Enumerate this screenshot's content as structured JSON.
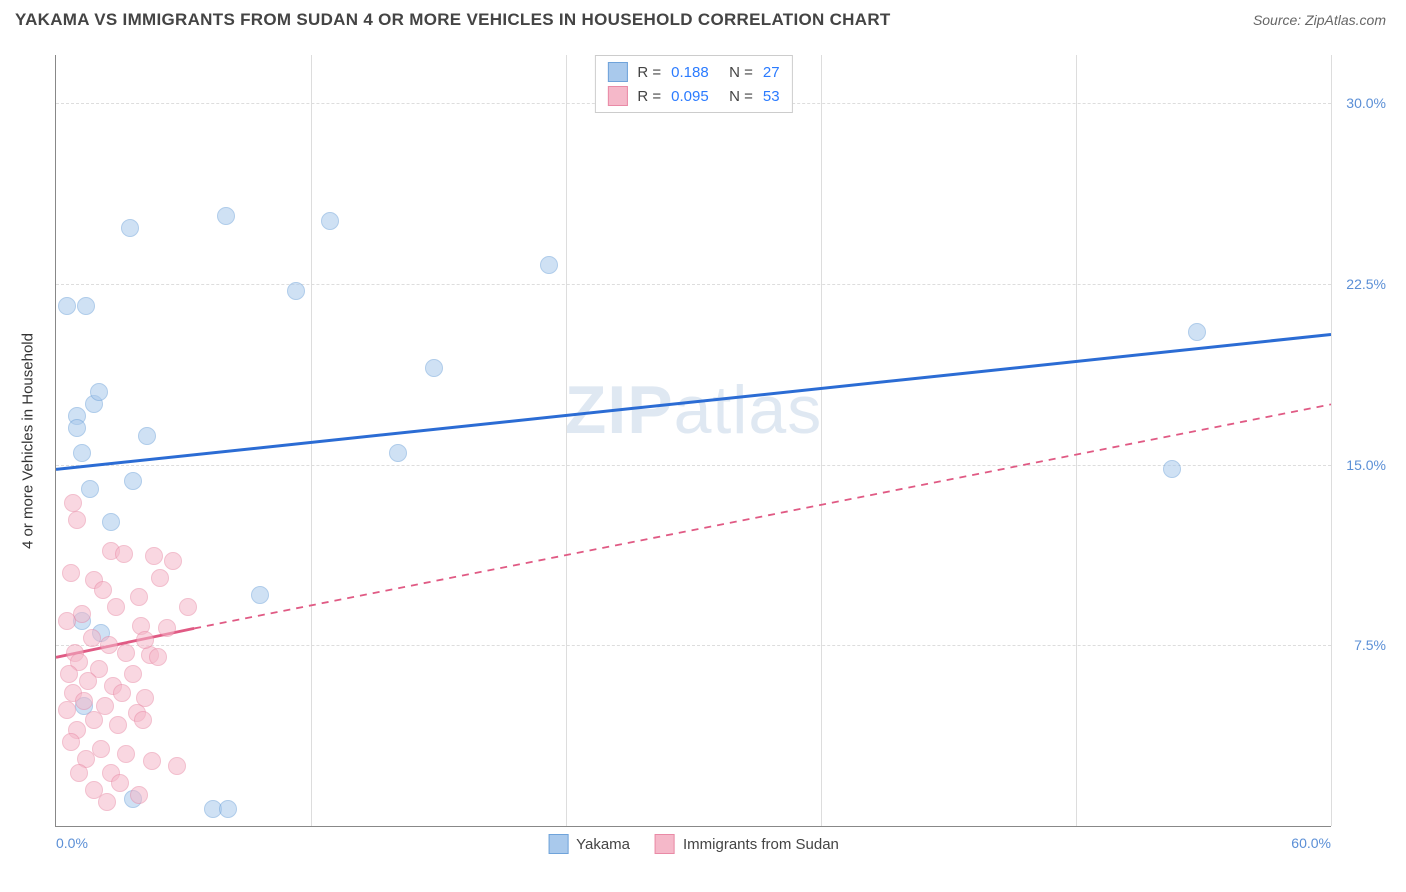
{
  "header": {
    "title": "YAKAMA VS IMMIGRANTS FROM SUDAN 4 OR MORE VEHICLES IN HOUSEHOLD CORRELATION CHART",
    "source": "Source: ZipAtlas.com"
  },
  "chart": {
    "type": "scatter",
    "watermark": "ZIPatlas",
    "y_axis_label": "4 or more Vehicles in Household",
    "xlim": [
      0,
      60
    ],
    "ylim": [
      0,
      32
    ],
    "x_ticks": [
      0,
      60
    ],
    "x_tick_labels": [
      "0.0%",
      "60.0%"
    ],
    "y_ticks": [
      7.5,
      15.0,
      22.5,
      30.0
    ],
    "y_tick_labels": [
      "7.5%",
      "15.0%",
      "22.5%",
      "30.0%"
    ],
    "v_gridlines": [
      0,
      12,
      24,
      36,
      48,
      60
    ],
    "background_color": "#ffffff",
    "grid_color": "#dddddd",
    "axis_color": "#888888",
    "marker_radius": 9,
    "marker_opacity": 0.55,
    "series": [
      {
        "name": "Yakama",
        "fill": "#a9c9ec",
        "stroke": "#6fa3da",
        "r_value": "0.188",
        "n_value": "27",
        "trend": {
          "x1": 0,
          "y1": 14.8,
          "x2": 60,
          "y2": 20.4,
          "color": "#2b6cd4",
          "dash": false,
          "width": 3,
          "extent_x": 60
        },
        "points": [
          [
            0.5,
            21.6
          ],
          [
            1.4,
            21.6
          ],
          [
            1.0,
            17.0
          ],
          [
            1.8,
            17.5
          ],
          [
            3.5,
            24.8
          ],
          [
            8.0,
            25.3
          ],
          [
            12.9,
            25.1
          ],
          [
            11.3,
            22.2
          ],
          [
            23.2,
            23.3
          ],
          [
            2.0,
            18.0
          ],
          [
            4.3,
            16.2
          ],
          [
            1.2,
            15.5
          ],
          [
            1.6,
            14.0
          ],
          [
            3.6,
            14.3
          ],
          [
            16.1,
            15.5
          ],
          [
            17.8,
            19.0
          ],
          [
            2.6,
            12.6
          ],
          [
            1.0,
            16.5
          ],
          [
            53.7,
            20.5
          ],
          [
            52.5,
            14.8
          ],
          [
            9.6,
            9.6
          ],
          [
            3.6,
            1.1
          ],
          [
            2.1,
            8.0
          ],
          [
            1.2,
            8.5
          ],
          [
            7.4,
            0.7
          ],
          [
            8.1,
            0.7
          ],
          [
            1.3,
            5.0
          ]
        ]
      },
      {
        "name": "Immigrants from Sudan",
        "fill": "#f5b8c9",
        "stroke": "#e98aa6",
        "r_value": "0.095",
        "n_value": "53",
        "trend": {
          "x1": 0,
          "y1": 7.0,
          "x2": 60,
          "y2": 17.5,
          "color": "#e05a84",
          "dash": true,
          "width": 1.8,
          "extent_x": 6.5,
          "solid_y_at_extent": 8.2
        },
        "points": [
          [
            0.8,
            13.4
          ],
          [
            1.0,
            12.7
          ],
          [
            2.6,
            11.4
          ],
          [
            3.2,
            11.3
          ],
          [
            4.6,
            11.2
          ],
          [
            4.9,
            10.3
          ],
          [
            5.5,
            11.0
          ],
          [
            1.8,
            10.2
          ],
          [
            0.7,
            10.5
          ],
          [
            2.2,
            9.8
          ],
          [
            3.9,
            9.5
          ],
          [
            2.8,
            9.1
          ],
          [
            1.2,
            8.8
          ],
          [
            0.5,
            8.5
          ],
          [
            4.0,
            8.3
          ],
          [
            5.2,
            8.2
          ],
          [
            6.2,
            9.1
          ],
          [
            1.7,
            7.8
          ],
          [
            2.5,
            7.5
          ],
          [
            0.9,
            7.2
          ],
          [
            3.3,
            7.2
          ],
          [
            4.4,
            7.1
          ],
          [
            1.1,
            6.8
          ],
          [
            2.0,
            6.5
          ],
          [
            0.6,
            6.3
          ],
          [
            3.6,
            6.3
          ],
          [
            4.8,
            7.0
          ],
          [
            1.5,
            6.0
          ],
          [
            2.7,
            5.8
          ],
          [
            0.8,
            5.5
          ],
          [
            3.1,
            5.5
          ],
          [
            4.2,
            5.3
          ],
          [
            1.3,
            5.2
          ],
          [
            2.3,
            5.0
          ],
          [
            0.5,
            4.8
          ],
          [
            3.8,
            4.7
          ],
          [
            1.8,
            4.4
          ],
          [
            2.9,
            4.2
          ],
          [
            1.0,
            4.0
          ],
          [
            4.1,
            4.4
          ],
          [
            0.7,
            3.5
          ],
          [
            2.1,
            3.2
          ],
          [
            3.3,
            3.0
          ],
          [
            1.4,
            2.8
          ],
          [
            4.5,
            2.7
          ],
          [
            5.7,
            2.5
          ],
          [
            2.6,
            2.2
          ],
          [
            1.1,
            2.2
          ],
          [
            3.0,
            1.8
          ],
          [
            1.8,
            1.5
          ],
          [
            3.9,
            1.3
          ],
          [
            2.4,
            1.0
          ],
          [
            4.2,
            7.7
          ]
        ]
      }
    ],
    "legend_top": {
      "r_label": "R =",
      "n_label": "N ="
    },
    "legend_bottom": [
      {
        "label": "Yakama",
        "fill": "#a9c9ec",
        "stroke": "#6fa3da"
      },
      {
        "label": "Immigrants from Sudan",
        "fill": "#f5b8c9",
        "stroke": "#e98aa6"
      }
    ]
  }
}
